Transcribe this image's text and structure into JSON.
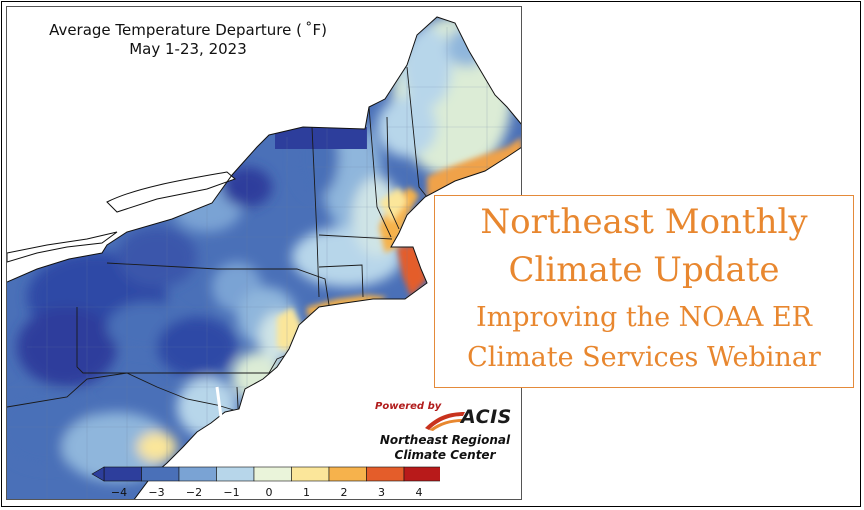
{
  "map": {
    "title_line1": "Average Temperature Departure ( ˚F)",
    "title_line2": "May 1-23, 2023",
    "colorbar": {
      "ticks": [
        "−4",
        "−3",
        "−2",
        "−1",
        "0",
        "1",
        "2",
        "3",
        "4"
      ],
      "colors": [
        "#2d3e9c",
        "#4a70b8",
        "#7aa3d4",
        "#b7d6ea",
        "#eaf4da",
        "#fbe69a",
        "#f6b24c",
        "#e45d2a",
        "#b81a1a"
      ]
    }
  },
  "logo": {
    "powered_by": "Powered by",
    "name": "ACIS",
    "org_line1": "Northeast Regional",
    "org_line2": "Climate Center"
  },
  "headline": {
    "line1": "Northeast Monthly",
    "line2": "Climate Update",
    "line3": "Improving the NOAA ER",
    "line4": "Climate Services Webinar"
  },
  "colors": {
    "accent": "#e8872f",
    "cold_dark": "#2d3e9c",
    "cold": "#4a70b8",
    "cool": "#7aa3d4",
    "cool_light": "#b7d6ea",
    "neutral": "#eaf4da",
    "warm": "#f6b24c",
    "hot": "#e45d2a"
  }
}
